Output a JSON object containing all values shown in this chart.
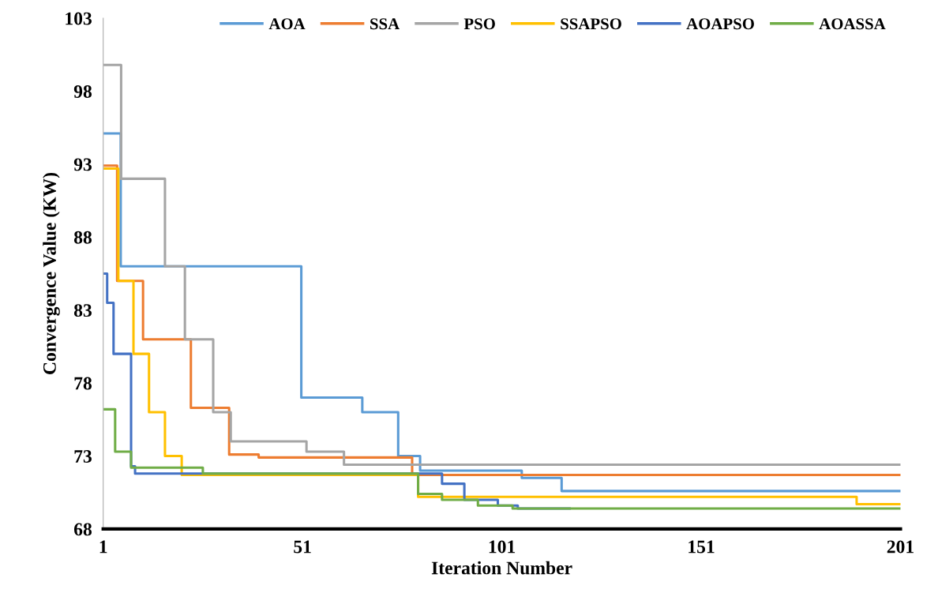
{
  "chart_data": {
    "type": "step",
    "xlabel": "Iteration Number",
    "ylabel": "Convergence Value (KW)",
    "xlim": [
      1,
      201
    ],
    "xticks": [
      1,
      51,
      101,
      151,
      201
    ],
    "ylim": [
      68,
      103
    ],
    "yticks": [
      68,
      73,
      78,
      83,
      88,
      93,
      98,
      103
    ],
    "grid": false,
    "legend": "top right",
    "line_style": "solid",
    "marker": "none",
    "series": [
      {
        "name": "AOA",
        "color": "#5b9bd5",
        "x": [
          1,
          5.4,
          50.7,
          66,
          75,
          80.5,
          106,
          116,
          201
        ],
        "values": [
          95.1,
          86.0,
          77.0,
          76.0,
          73.0,
          72.0,
          71.5,
          70.6,
          70.6
        ]
      },
      {
        "name": "SSA",
        "color": "#ed7d31",
        "x": [
          1,
          4.5,
          11,
          23,
          32.6,
          40,
          78.5,
          201
        ],
        "values": [
          92.9,
          85.0,
          81.0,
          76.3,
          73.1,
          72.9,
          71.7,
          71.7
        ]
      },
      {
        "name": "PSO",
        "color": "#a5a5a5",
        "x": [
          1,
          5.5,
          16.5,
          21.5,
          28.6,
          33,
          52,
          61.4,
          201
        ],
        "values": [
          99.8,
          92.0,
          86.0,
          81.0,
          76.0,
          74.0,
          73.3,
          72.4,
          72.4
        ]
      },
      {
        "name": "SSAPSO",
        "color": "#ffc000",
        "x": [
          1,
          4.8,
          8.6,
          12.5,
          16.5,
          20.7,
          80,
          190,
          201
        ],
        "values": [
          92.7,
          85.0,
          80.0,
          76.0,
          73.0,
          71.7,
          70.2,
          69.7,
          69.7
        ]
      },
      {
        "name": "AOAPSO",
        "color": "#4472c4",
        "x": [
          1,
          2,
          3.6,
          8,
          9,
          86,
          91.6,
          100,
          105,
          118
        ],
        "values": [
          85.5,
          83.5,
          80.0,
          72.3,
          71.8,
          71.1,
          70.0,
          69.6,
          69.4,
          69.4
        ]
      },
      {
        "name": "AOASSA",
        "color": "#70ad47",
        "x": [
          1,
          4,
          8,
          26,
          80,
          86,
          95,
          103.7,
          201
        ],
        "values": [
          76.2,
          73.3,
          72.2,
          71.8,
          70.4,
          70.0,
          69.6,
          69.4,
          69.4
        ]
      }
    ]
  }
}
